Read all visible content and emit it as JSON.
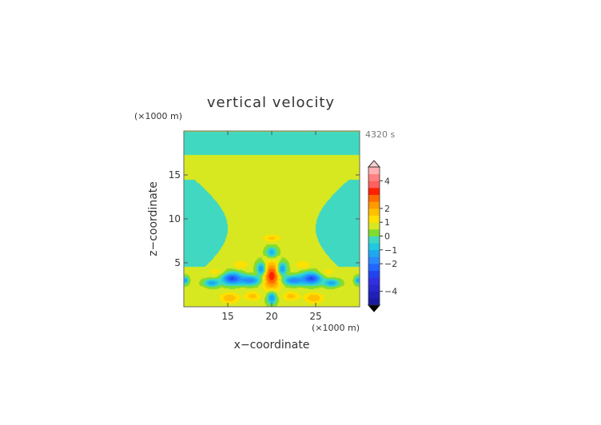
{
  "chart_data": {
    "type": "heatmap",
    "title": "vertical velocity",
    "time_label": "4320 s",
    "xlabel": "x−coordinate",
    "ylabel": "z−coordinate",
    "x_unit_label": "(×1000 m)",
    "y_unit_label": "(×1000 m)",
    "xlim": [
      10,
      30
    ],
    "ylim": [
      0,
      20
    ],
    "x_ticks": [
      15,
      20,
      25
    ],
    "y_ticks": [
      5,
      10,
      15
    ],
    "x_tick_labels": [
      "15",
      "20",
      "25"
    ],
    "y_tick_labels": [
      "5",
      "10",
      "15"
    ],
    "colorbar": {
      "levels": [
        -5,
        -4.5,
        -4,
        -3.5,
        -3,
        -2.5,
        -2,
        -1.5,
        -1,
        -0.5,
        0,
        0.5,
        1,
        1.5,
        2,
        2.5,
        3,
        3.5,
        4,
        4.5,
        5
      ],
      "colors": [
        "#1a1aa0",
        "#2020b8",
        "#2828cc",
        "#3030e0",
        "#2244ee",
        "#2266ff",
        "#2a88ff",
        "#1ea8f0",
        "#20c8e0",
        "#40d8c0",
        "#80dd30",
        "#d8e820",
        "#ffe000",
        "#ffc000",
        "#ff9a00",
        "#ff6a00",
        "#ff2000",
        "#ff6060",
        "#ff8080",
        "#ffb0b0"
      ],
      "tick_values": [
        -4,
        -2,
        -1,
        0,
        1,
        2,
        4
      ],
      "tick_labels": [
        "−4",
        "−2",
        "−1",
        "0",
        "1",
        "2",
        "4"
      ],
      "extend": "both"
    },
    "background_value": 0.6,
    "features": [
      {
        "kind": "band",
        "value": -0.15,
        "z": 18.6,
        "half_width": 1.3
      },
      {
        "kind": "wedge",
        "side": "left",
        "value": -0.15,
        "z_top": 14.5,
        "z_bottom": 4.5
      },
      {
        "kind": "wedge",
        "side": "right",
        "value": -0.15,
        "z_top": 14.5,
        "z_bottom": 4.5
      },
      {
        "kind": "blob",
        "x": 20.0,
        "z": 3.5,
        "rx": 1.2,
        "rz": 1.8,
        "value": 2.6
      },
      {
        "kind": "blob",
        "x": 20.0,
        "z": 1.0,
        "rx": 0.6,
        "rz": 0.8,
        "value": -1.2
      },
      {
        "kind": "blob",
        "x": 20.0,
        "z": 6.2,
        "rx": 0.7,
        "rz": 0.7,
        "value": -0.9
      },
      {
        "kind": "blob",
        "x": 20.0,
        "z": 7.8,
        "rx": 1.2,
        "rz": 0.5,
        "value": 1.3
      },
      {
        "kind": "blob",
        "x": 17.5,
        "z": 3.0,
        "rx": 1.4,
        "rz": 0.6,
        "value": -1.5
      },
      {
        "kind": "blob",
        "x": 22.5,
        "z": 3.0,
        "rx": 1.4,
        "rz": 0.6,
        "value": -1.5
      },
      {
        "kind": "blob",
        "x": 18.8,
        "z": 4.3,
        "rx": 0.6,
        "rz": 0.9,
        "value": -1.2
      },
      {
        "kind": "blob",
        "x": 21.2,
        "z": 4.3,
        "rx": 0.6,
        "rz": 0.9,
        "value": -1.2
      },
      {
        "kind": "blob",
        "x": 15.5,
        "z": 3.2,
        "rx": 1.4,
        "rz": 0.8,
        "value": -2.1
      },
      {
        "kind": "blob",
        "x": 24.5,
        "z": 3.2,
        "rx": 1.4,
        "rz": 0.8,
        "value": -2.1
      },
      {
        "kind": "blob",
        "x": 16.5,
        "z": 4.8,
        "rx": 1.0,
        "rz": 0.5,
        "value": 1.2
      },
      {
        "kind": "blob",
        "x": 23.5,
        "z": 4.8,
        "rx": 1.0,
        "rz": 0.5,
        "value": 1.2
      },
      {
        "kind": "blob",
        "x": 17.8,
        "z": 1.2,
        "rx": 1.1,
        "rz": 0.6,
        "value": 1.4
      },
      {
        "kind": "blob",
        "x": 22.2,
        "z": 1.2,
        "rx": 1.1,
        "rz": 0.6,
        "value": 1.4
      },
      {
        "kind": "blob",
        "x": 15.2,
        "z": 1.0,
        "rx": 1.2,
        "rz": 0.7,
        "value": 1.6
      },
      {
        "kind": "blob",
        "x": 24.8,
        "z": 1.0,
        "rx": 1.2,
        "rz": 0.7,
        "value": 1.6
      },
      {
        "kind": "blob",
        "x": 13.2,
        "z": 2.7,
        "rx": 1.0,
        "rz": 0.5,
        "value": -1.1
      },
      {
        "kind": "blob",
        "x": 26.8,
        "z": 2.7,
        "rx": 1.0,
        "rz": 0.5,
        "value": -1.1
      },
      {
        "kind": "blob",
        "x": 13.5,
        "z": 4.0,
        "rx": 1.2,
        "rz": 0.6,
        "value": 0.9
      },
      {
        "kind": "blob",
        "x": 26.5,
        "z": 4.0,
        "rx": 1.2,
        "rz": 0.6,
        "value": 0.9
      },
      {
        "kind": "blob",
        "x": 10.2,
        "z": 3.0,
        "rx": 0.4,
        "rz": 0.5,
        "value": -1.0
      },
      {
        "kind": "blob",
        "x": 29.8,
        "z": 3.0,
        "rx": 0.4,
        "rz": 0.5,
        "value": -1.0
      },
      {
        "kind": "blob",
        "x": 12.0,
        "z": 1.5,
        "rx": 0.8,
        "rz": 0.6,
        "value": 0.8
      },
      {
        "kind": "blob",
        "x": 28.0,
        "z": 1.5,
        "rx": 0.8,
        "rz": 0.6,
        "value": 0.8
      }
    ]
  }
}
